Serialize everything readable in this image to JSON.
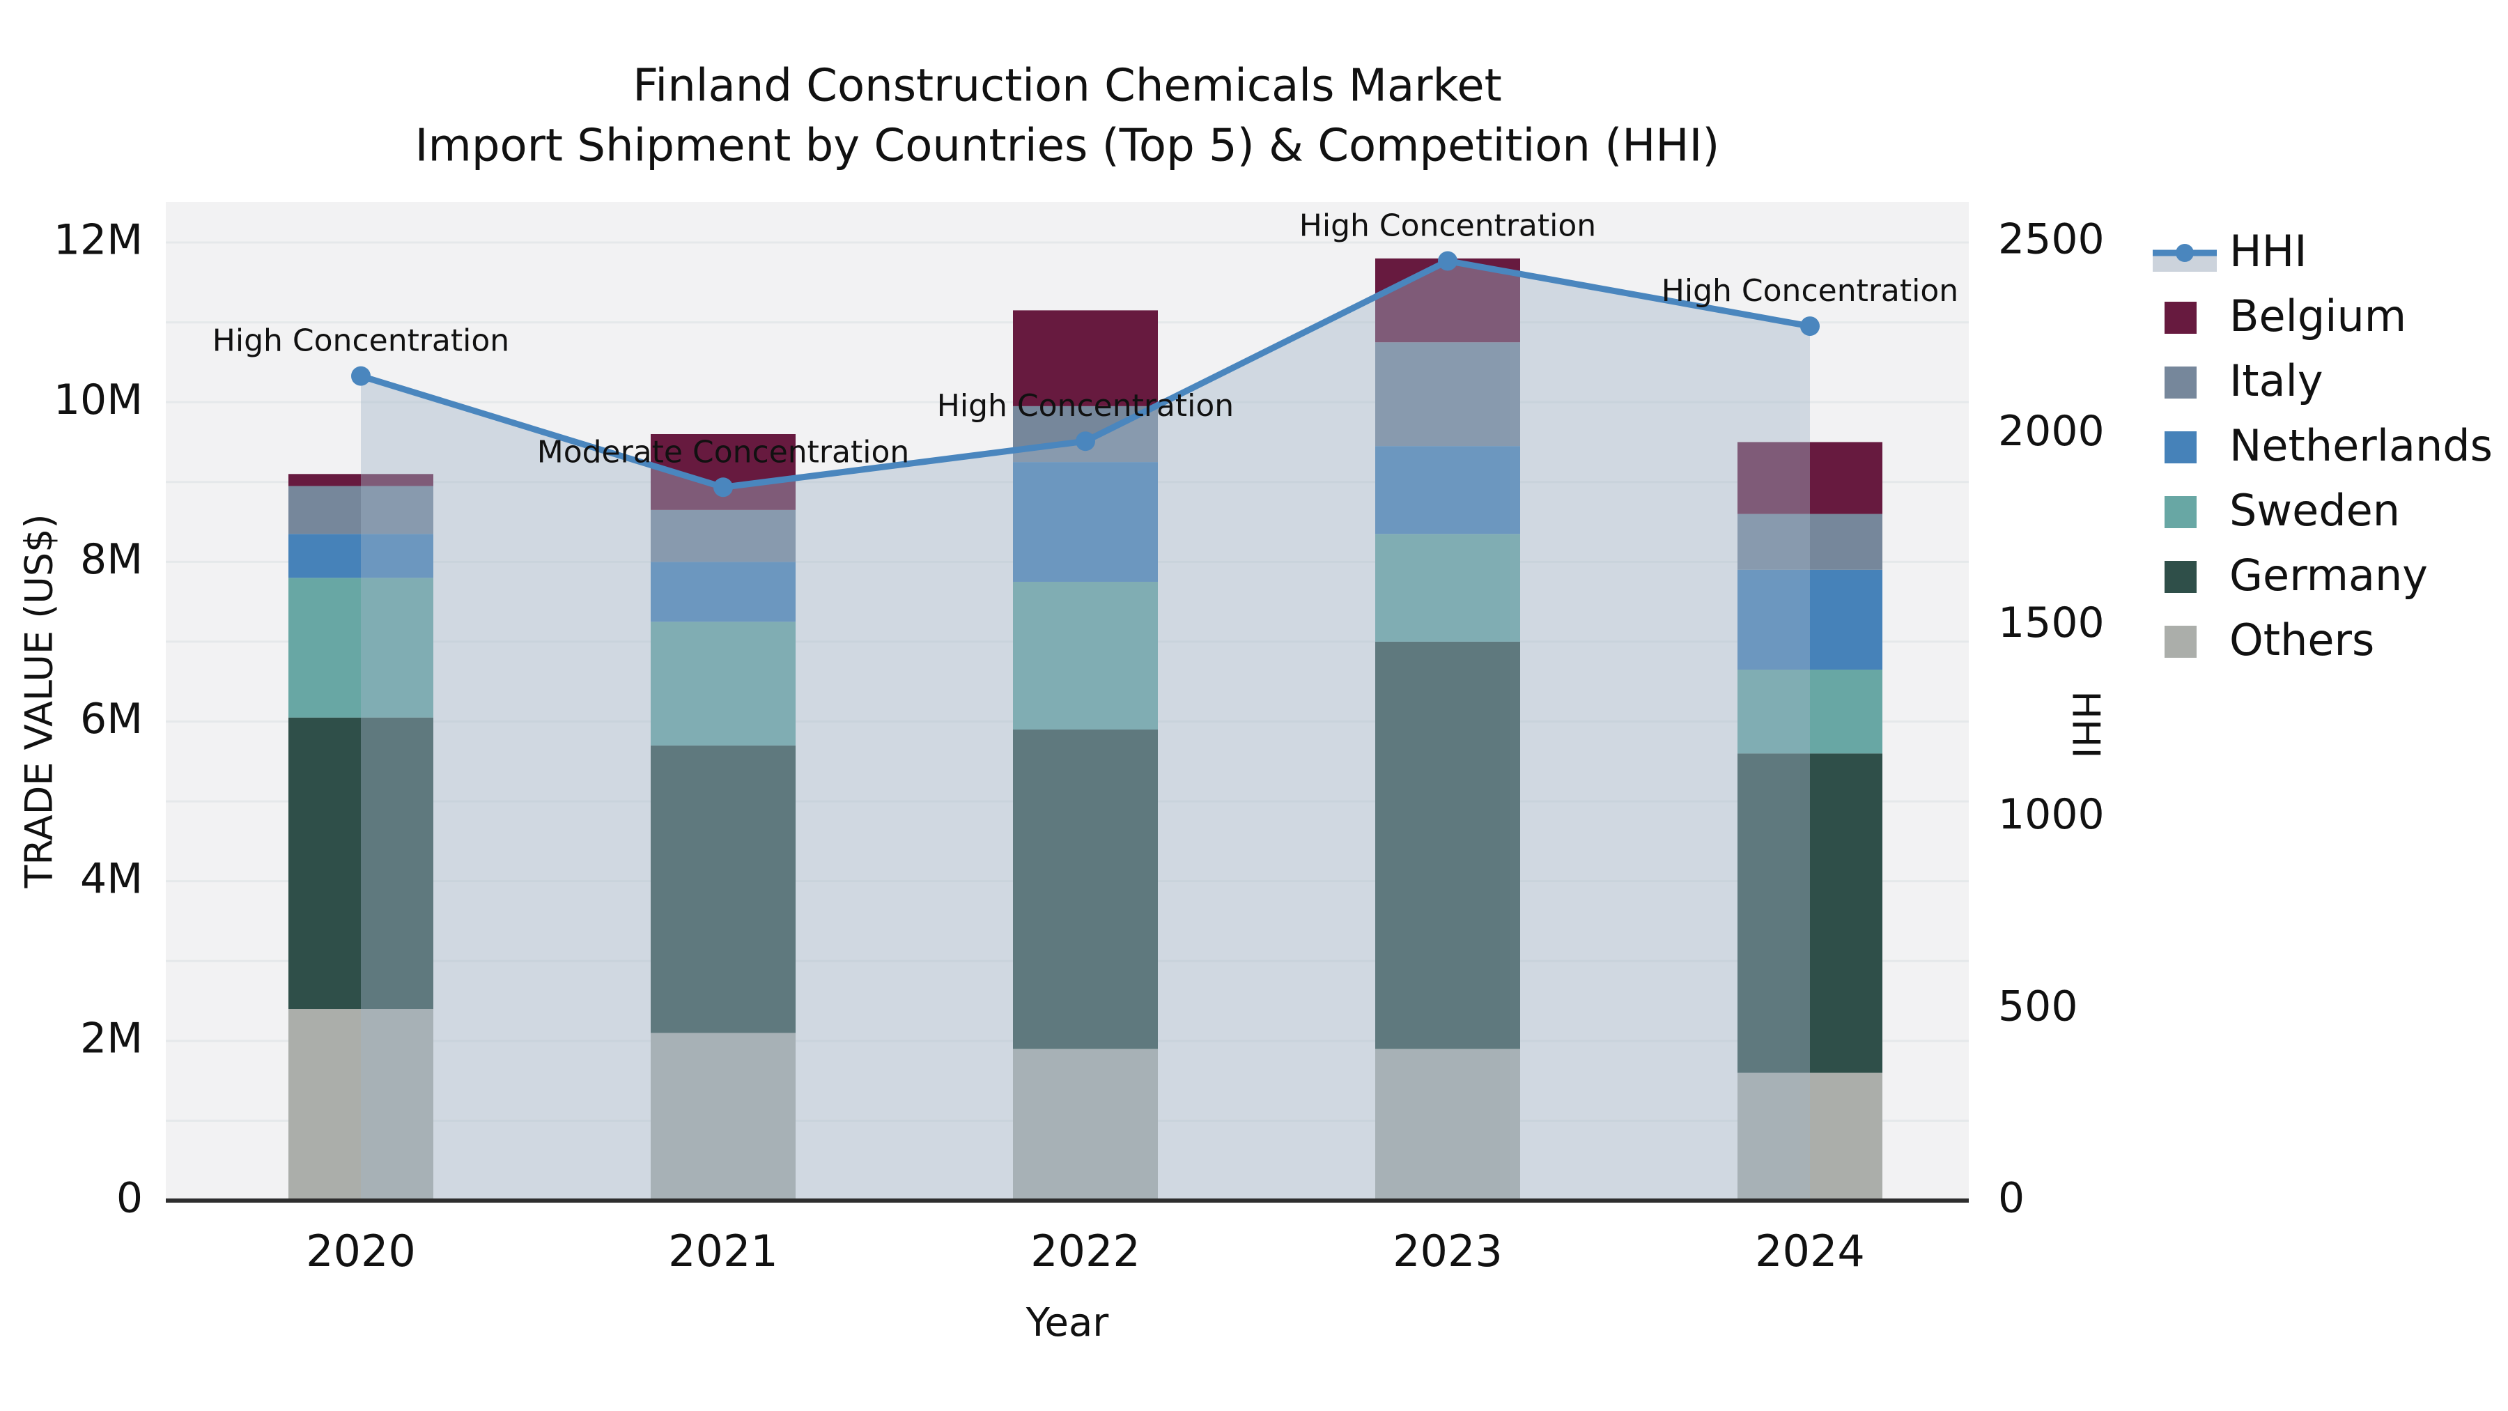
{
  "title": {
    "line1": "Finland Construction Chemicals Market",
    "line2": "Import Shipment by Countries (Top 5) & Competition (HHI)"
  },
  "axes": {
    "y_left": {
      "label": "TRADE VALUE (US$)",
      "ticks": [
        "0",
        "2M",
        "4M",
        "6M",
        "8M",
        "10M",
        "12M"
      ],
      "tick_values_millions": [
        0,
        2,
        4,
        6,
        8,
        10,
        12
      ],
      "range_millions": [
        0,
        12.5
      ]
    },
    "y_right": {
      "label": "HHI",
      "ticks": [
        "0",
        "500",
        "1000",
        "1500",
        "2000",
        "2500"
      ],
      "tick_values": [
        0,
        500,
        1000,
        1500,
        2000,
        2500
      ],
      "range": [
        0,
        2600
      ]
    },
    "x": {
      "label": "Year"
    }
  },
  "chart_data": {
    "type": "bar",
    "subtype": "stacked-bars-with-line-overlay",
    "categories": [
      "2020",
      "2021",
      "2022",
      "2023",
      "2024"
    ],
    "unit": "millions of US$",
    "series": [
      {
        "name": "Others",
        "color_key": "others",
        "values": [
          2.4,
          2.1,
          1.9,
          1.9,
          1.6
        ]
      },
      {
        "name": "Germany",
        "color_key": "germany",
        "values": [
          3.65,
          3.6,
          4.0,
          5.1,
          4.0
        ]
      },
      {
        "name": "Sweden",
        "color_key": "sweden",
        "values": [
          1.75,
          1.55,
          1.85,
          1.35,
          1.05
        ]
      },
      {
        "name": "Netherlands",
        "color_key": "netherlands",
        "values": [
          0.55,
          0.75,
          1.5,
          1.1,
          1.25
        ]
      },
      {
        "name": "Italy",
        "color_key": "italy",
        "values": [
          0.6,
          0.65,
          0.7,
          1.3,
          0.7
        ]
      },
      {
        "name": "Belgium",
        "color_key": "belgium",
        "values": [
          0.15,
          0.95,
          1.2,
          1.05,
          0.9
        ]
      }
    ],
    "totals_millions": [
      9.1,
      9.6,
      11.15,
      11.8,
      9.5
    ],
    "line": {
      "name": "HHI",
      "values": [
        2150,
        1860,
        1980,
        2450,
        2280
      ],
      "axis": "right"
    },
    "annotations": [
      {
        "category": "2020",
        "text": "High Concentration"
      },
      {
        "category": "2021",
        "text": "Moderate Concentration"
      },
      {
        "category": "2022",
        "text": "High Concentration"
      },
      {
        "category": "2023",
        "text": "High Concentration"
      },
      {
        "category": "2024",
        "text": "High Concentration"
      }
    ],
    "legend_position": "right-outside",
    "grid": "horizontal-light"
  },
  "legend": {
    "items": [
      {
        "label": "HHI",
        "type": "line",
        "color_key": "hhi_line"
      },
      {
        "label": "Belgium",
        "type": "swatch",
        "color_key": "belgium"
      },
      {
        "label": "Italy",
        "type": "swatch",
        "color_key": "italy"
      },
      {
        "label": "Netherlands",
        "type": "swatch",
        "color_key": "netherlands"
      },
      {
        "label": "Sweden",
        "type": "swatch",
        "color_key": "sweden"
      },
      {
        "label": "Germany",
        "type": "swatch",
        "color_key": "germany"
      },
      {
        "label": "Others",
        "type": "swatch",
        "color_key": "others"
      }
    ]
  },
  "colors": {
    "belgium": "#671a3f",
    "italy": "#76879b",
    "netherlands": "#4682b9",
    "sweden": "#68a7a4",
    "germany": "#2f4f49",
    "others": "#abaeaa",
    "hhi_line": "#4a86be",
    "area_fill": "#a3b4c8",
    "area_alpha": 0.42,
    "legend_band": "#ccd3dc",
    "plot_bg": "#f2f2f3",
    "grid": "#e5e8ea",
    "axis_line": "#2e2e2e",
    "text": "#111111"
  }
}
